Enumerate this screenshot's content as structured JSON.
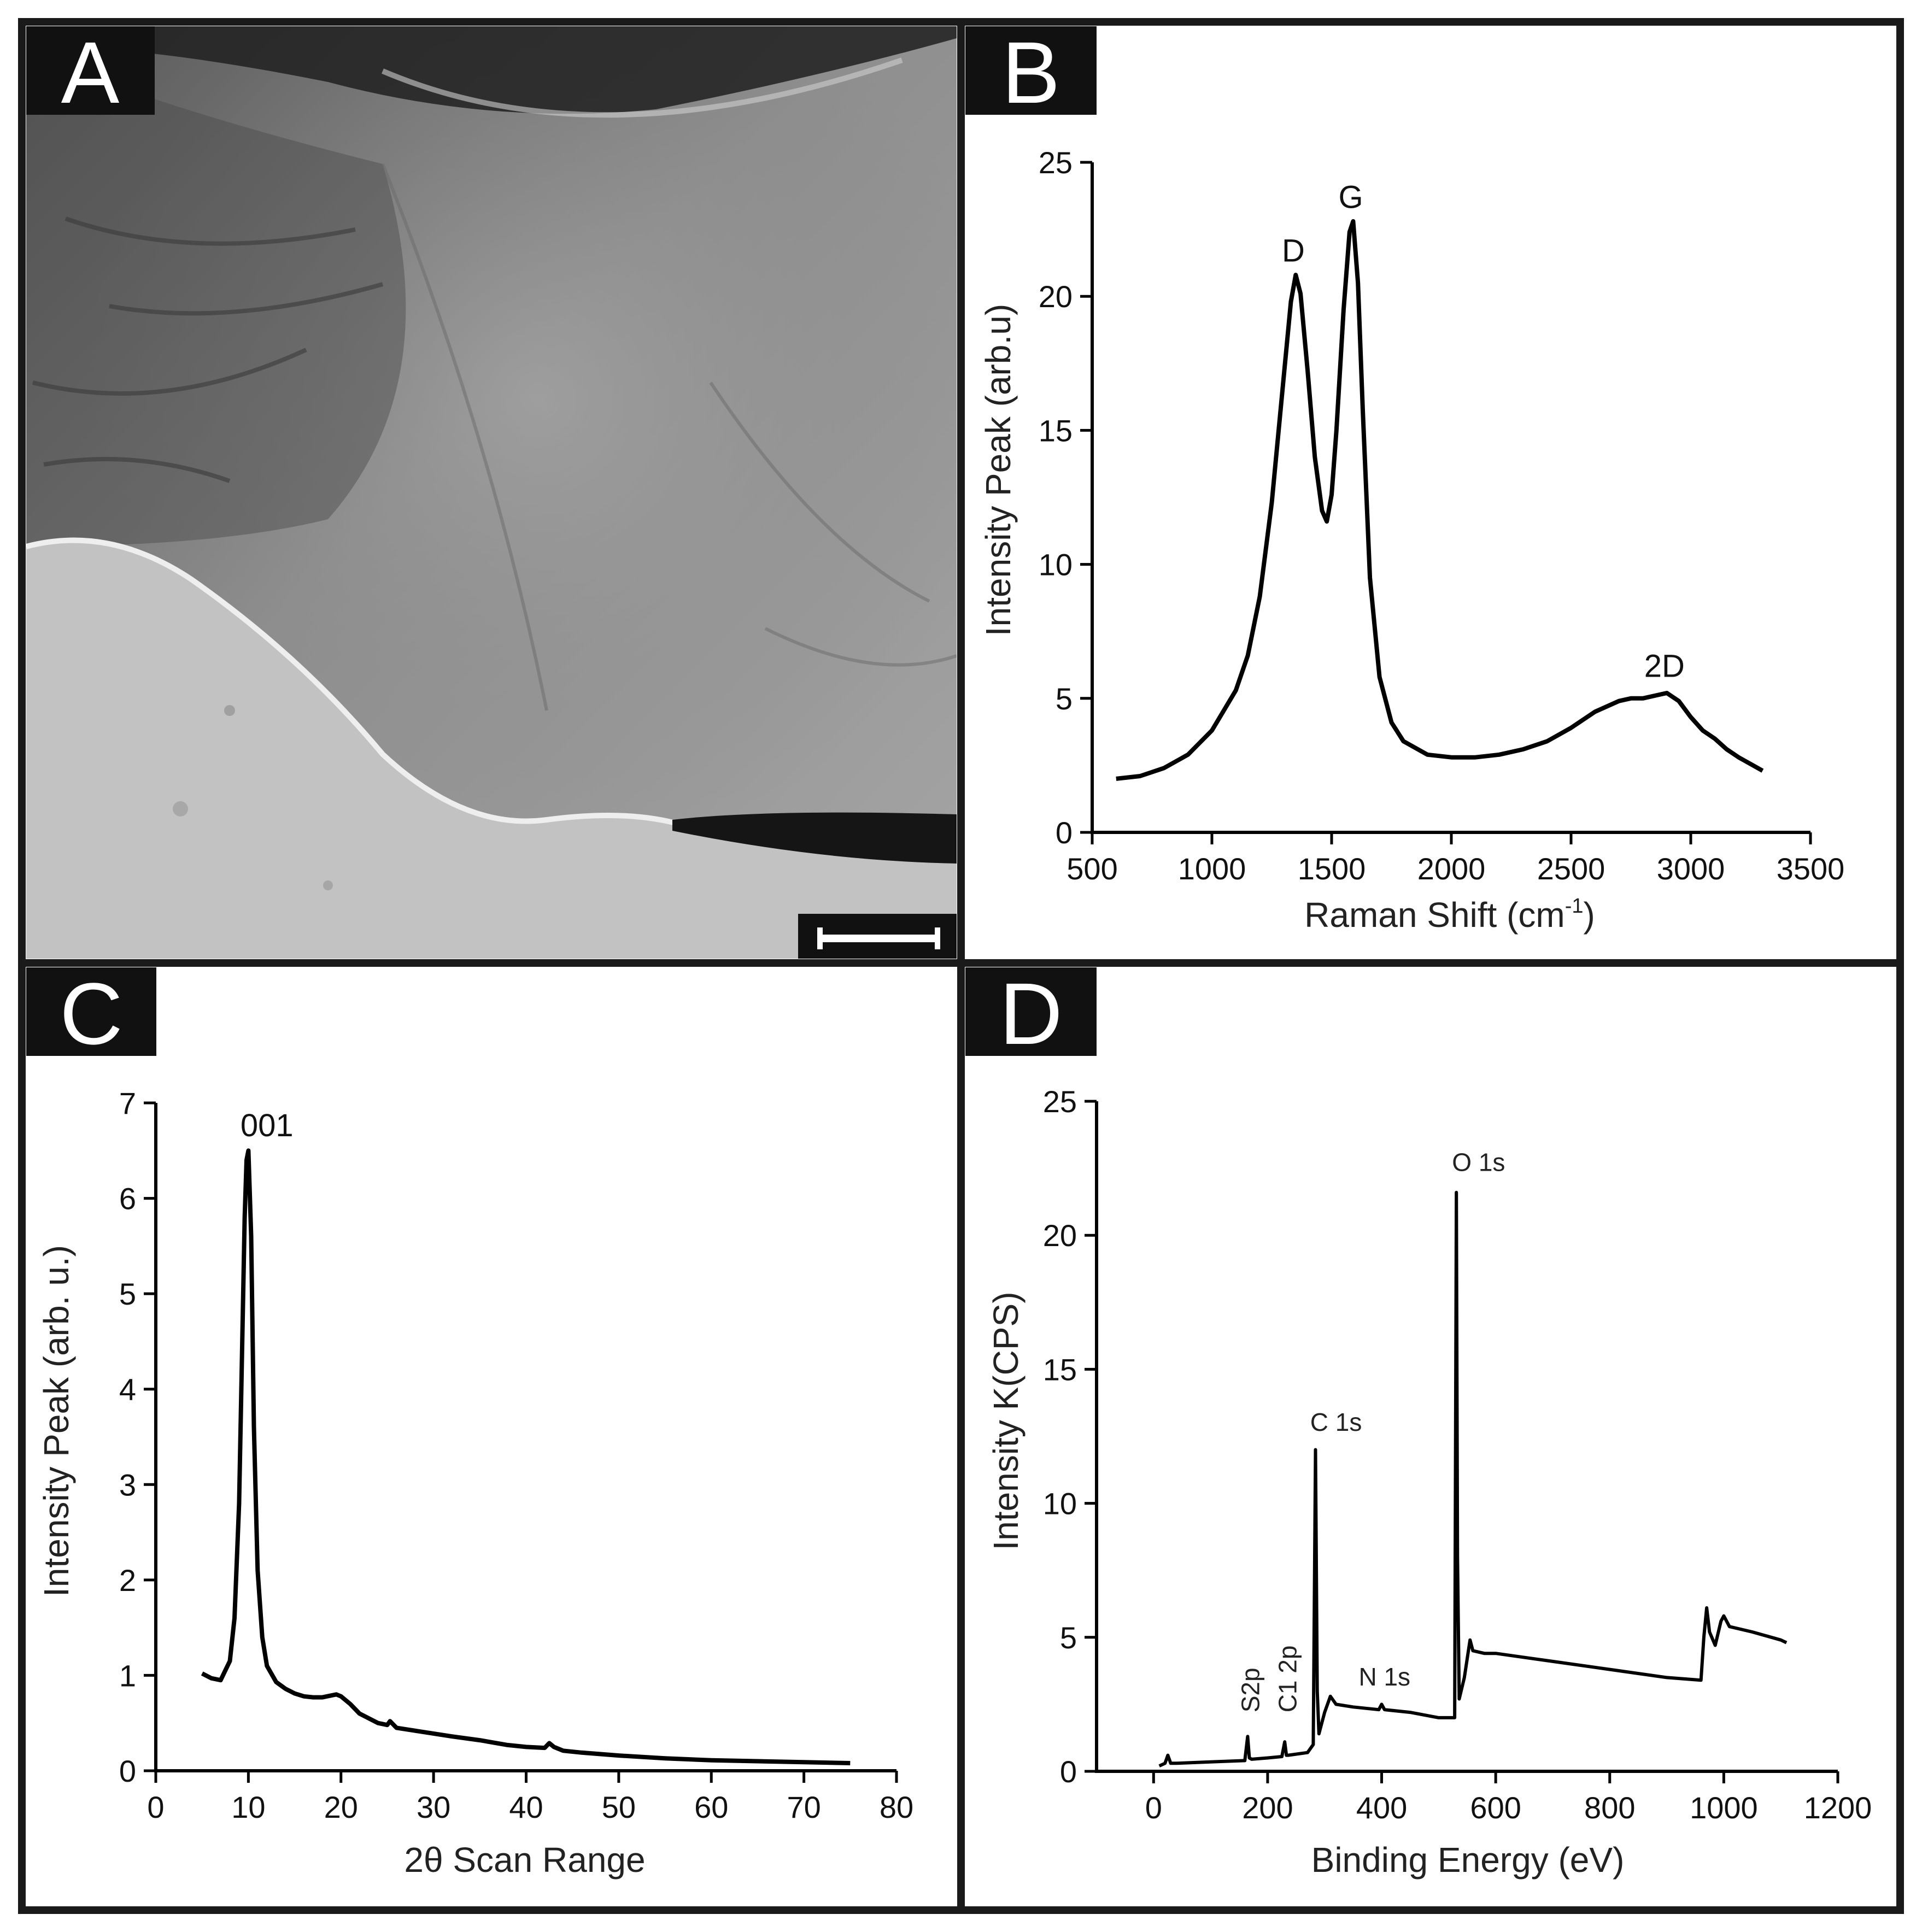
{
  "panels": [
    {
      "id": "A",
      "label": "A",
      "kind": "micrograph",
      "has_scale_bar": true
    },
    {
      "id": "B",
      "label": "B",
      "kind": "chart"
    },
    {
      "id": "C",
      "label": "C",
      "kind": "chart"
    },
    {
      "id": "D",
      "label": "D",
      "kind": "chart"
    }
  ],
  "colors": {
    "frame": "#1a1a1a",
    "tag_background": "#111111",
    "line": "#000000",
    "micrograph_dark": "#6f6f6f",
    "micrograph_light": "#c4c4c4"
  },
  "chart_data": [
    {
      "panel": "B",
      "type": "line",
      "title": "",
      "xlabel_main": "Raman Shift (cm",
      "xlabel_sup": "-1",
      "xlabel_end": ")",
      "ylabel": "Intensity Peak (arb.u)",
      "xlim": [
        500,
        3500
      ],
      "ylim": [
        0,
        25
      ],
      "xticks": [
        500,
        1000,
        1500,
        2000,
        2500,
        3000,
        3500
      ],
      "yticks": [
        0,
        5,
        10,
        15,
        20,
        25
      ],
      "grid": false,
      "series": [
        {
          "x": [
            600,
            700,
            800,
            900,
            1000,
            1100,
            1150,
            1200,
            1250,
            1300,
            1330,
            1350,
            1370,
            1400,
            1430,
            1460,
            1480,
            1500,
            1520,
            1550,
            1575,
            1590,
            1610,
            1630,
            1660,
            1700,
            1750,
            1800,
            1900,
            2000,
            2100,
            2200,
            2300,
            2400,
            2500,
            2600,
            2700,
            2750,
            2800,
            2850,
            2900,
            2950,
            3000,
            3050,
            3100,
            3150,
            3200,
            3300
          ],
          "y": [
            2.0,
            2.1,
            2.4,
            2.9,
            3.8,
            5.3,
            6.6,
            8.8,
            12.3,
            17.0,
            19.8,
            20.8,
            20.1,
            17.2,
            14.0,
            12.0,
            11.6,
            12.6,
            15.0,
            19.5,
            22.4,
            22.8,
            20.5,
            15.8,
            9.5,
            5.8,
            4.1,
            3.4,
            2.9,
            2.8,
            2.8,
            2.9,
            3.1,
            3.4,
            3.9,
            4.5,
            4.9,
            5.0,
            5.0,
            5.1,
            5.2,
            4.9,
            4.3,
            3.8,
            3.5,
            3.1,
            2.8,
            2.3
          ]
        }
      ],
      "annotations": [
        {
          "text": "D",
          "x": 1340,
          "y": 21.3
        },
        {
          "text": "G",
          "x": 1580,
          "y": 23.3
        },
        {
          "text": "2D",
          "x": 2890,
          "y": 5.8
        }
      ]
    },
    {
      "panel": "C",
      "type": "line",
      "title": "",
      "xlabel": "2θ Scan Range",
      "ylabel": "Intensity Peak (arb. u.)",
      "xlim": [
        0,
        80
      ],
      "ylim": [
        0,
        7
      ],
      "xticks": [
        0,
        10,
        20,
        30,
        40,
        50,
        60,
        70,
        80
      ],
      "yticks": [
        0,
        1,
        2,
        3,
        4,
        5,
        6,
        7
      ],
      "grid": false,
      "series": [
        {
          "x": [
            5,
            6,
            7,
            8,
            8.5,
            9,
            9.3,
            9.6,
            9.8,
            10,
            10.3,
            10.6,
            11,
            11.5,
            12,
            13,
            14,
            15,
            16,
            17,
            18,
            19,
            19.5,
            20,
            21,
            22,
            24,
            25,
            25.3,
            25.6,
            26,
            28,
            30,
            32,
            35,
            38,
            40,
            42,
            42.5,
            43,
            44,
            46,
            50,
            55,
            60,
            65,
            70,
            75
          ],
          "y": [
            1.02,
            0.97,
            0.95,
            1.15,
            1.6,
            2.8,
            4.3,
            5.8,
            6.4,
            6.5,
            5.6,
            3.6,
            2.1,
            1.4,
            1.1,
            0.93,
            0.86,
            0.81,
            0.78,
            0.77,
            0.77,
            0.79,
            0.8,
            0.78,
            0.7,
            0.6,
            0.5,
            0.48,
            0.52,
            0.49,
            0.45,
            0.42,
            0.39,
            0.36,
            0.32,
            0.27,
            0.25,
            0.24,
            0.29,
            0.25,
            0.21,
            0.19,
            0.16,
            0.13,
            0.11,
            0.1,
            0.09,
            0.08
          ]
        }
      ],
      "annotations": [
        {
          "text": "001",
          "x": 12,
          "y": 6.65
        }
      ]
    },
    {
      "panel": "D",
      "type": "line",
      "title": "",
      "xlabel": "Binding Energy (eV)",
      "ylabel": "Intensity K(CPS)",
      "xlim": [
        -100,
        1200
      ],
      "ylim": [
        0,
        25
      ],
      "xticks": [
        0,
        200,
        400,
        600,
        800,
        1000,
        1200
      ],
      "yticks": [
        0,
        5,
        10,
        15,
        20,
        25
      ],
      "grid": false,
      "series": [
        {
          "x": [
            10,
            20,
            25,
            30,
            40,
            100,
            160,
            165,
            168,
            172,
            200,
            225,
            230,
            233,
            236,
            270,
            280,
            284,
            287,
            290,
            300,
            310,
            320,
            350,
            395,
            400,
            405,
            450,
            500,
            528,
            531,
            533,
            536,
            545,
            555,
            560,
            580,
            600,
            700,
            800,
            900,
            960,
            965,
            970,
            975,
            985,
            995,
            1000,
            1010,
            1050,
            1100,
            1110
          ],
          "y": [
            0.2,
            0.3,
            0.6,
            0.3,
            0.3,
            0.35,
            0.4,
            1.3,
            0.5,
            0.45,
            0.5,
            0.55,
            1.1,
            0.6,
            0.6,
            0.7,
            1.0,
            12.0,
            3.0,
            1.4,
            2.2,
            2.8,
            2.5,
            2.4,
            2.3,
            2.5,
            2.3,
            2.2,
            2.0,
            2.0,
            21.6,
            8.0,
            2.7,
            3.5,
            4.9,
            4.5,
            4.4,
            4.4,
            4.1,
            3.8,
            3.5,
            3.4,
            5.0,
            6.1,
            5.2,
            4.7,
            5.6,
            5.8,
            5.4,
            5.2,
            4.9,
            4.8
          ]
        }
      ],
      "annotations": [
        {
          "text": "O 1s",
          "x": 570,
          "y": 22.4,
          "rotated": false
        },
        {
          "text": "C 1s",
          "x": 320,
          "y": 12.7,
          "rotated": false
        },
        {
          "text": "N 1s",
          "x": 405,
          "y": 3.2,
          "rotated": false
        },
        {
          "text": "S2p",
          "x": 170,
          "y": 2.4,
          "rotated": true
        },
        {
          "text": "C1 2p",
          "x": 235,
          "y": 2.4,
          "rotated": true
        }
      ]
    }
  ]
}
